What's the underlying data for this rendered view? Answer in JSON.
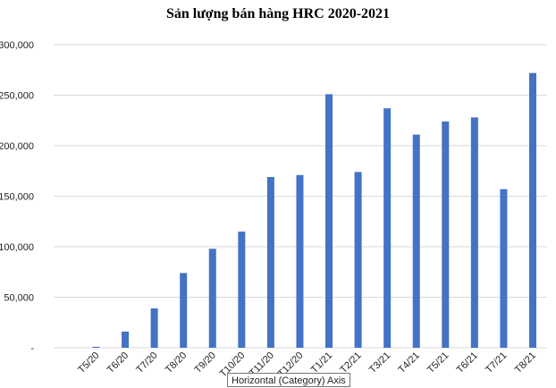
{
  "chart_data": {
    "type": "bar",
    "title": "Sản lượng bán hàng HRC 2020-2021",
    "xlabel": "",
    "ylabel": "",
    "categories": [
      "T5/20",
      "T6/20",
      "T7/20",
      "T8/20",
      "T9/20",
      "T10/20",
      "T11/20",
      "T12/20",
      "T1/21",
      "T2/21",
      "T3/21",
      "T4/21",
      "T5/21",
      "T6/21",
      "T7/21",
      "T8/21"
    ],
    "values": [
      1000,
      16000,
      39000,
      74000,
      98000,
      115000,
      169000,
      171000,
      251000,
      174000,
      237000,
      211000,
      224000,
      228000,
      157000,
      272000
    ],
    "ylim": [
      0,
      300000
    ],
    "y_ticks": [
      "-",
      "50,000",
      "100,000",
      "150,000",
      "200,000",
      "250,000",
      "300,000"
    ],
    "grid": true,
    "bar_color": "#4472C4",
    "grid_color": "#d9d9d9",
    "legend": "none"
  },
  "tooltip": {
    "text": "Horizontal (Category) Axis"
  }
}
